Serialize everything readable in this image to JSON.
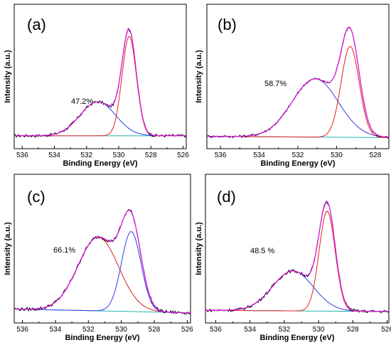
{
  "figure": {
    "panels": [
      "(a)",
      "(b)",
      "(c)",
      "(d)"
    ]
  },
  "chart_data": [
    {
      "type": "line",
      "panel_label": "(a)",
      "xlabel": "Binding Energy (eV)",
      "ylabel": "Intensity (a.u.)",
      "xlim": [
        536.5,
        525.8
      ],
      "x_reversed": true,
      "xticks": [
        536,
        534,
        532,
        530,
        528,
        526
      ],
      "annotation": "47.2%",
      "ylim": [
        0,
        1.0
      ],
      "colors": {
        "data": "#000000",
        "envelope": "#e01ee0",
        "peak1": "#3040e0",
        "peak2": "#e02020",
        "baseline": "#20b0b0"
      },
      "baseline": [
        0.035,
        0.035
      ],
      "peak1": {
        "center": 531.3,
        "height": 0.28,
        "fwhm": 2.6
      },
      "peak2": {
        "center": 529.35,
        "height": 0.82,
        "fwhm": 1.05
      },
      "noise": 0.012
    },
    {
      "type": "line",
      "panel_label": "(b)",
      "xlabel": "Binding Energy (eV)",
      "ylabel": "Intensity (a.u.)",
      "xlim": [
        536.7,
        527.3
      ],
      "x_reversed": true,
      "xticks": [
        536,
        534,
        532,
        530,
        528
      ],
      "annotation": "58.7%",
      "ylim": [
        0,
        1.0
      ],
      "colors": {
        "data": "#000000",
        "envelope": "#e01ee0",
        "peak1": "#3040e0",
        "peak2": "#e02020",
        "baseline": "#20b0b0"
      },
      "baseline": [
        0.03,
        0.02
      ],
      "peak1": {
        "center": 531.1,
        "height": 0.48,
        "fwhm": 2.8
      },
      "peak2": {
        "center": 529.3,
        "height": 0.75,
        "fwhm": 1.1
      },
      "noise": 0.01
    },
    {
      "type": "line",
      "panel_label": "(c)",
      "xlabel": "Binding Energy (eV)",
      "ylabel": "Intensity (a.u.)",
      "xlim": [
        536.5,
        525.8
      ],
      "x_reversed": true,
      "xticks": [
        536,
        534,
        532,
        530,
        528,
        526
      ],
      "annotation": "66.1%",
      "ylim": [
        0,
        1.0
      ],
      "colors": {
        "data": "#000000",
        "envelope": "#e01ee0",
        "peak1": "#e02020",
        "peak2": "#3040e0",
        "baseline": "#20b0b0"
      },
      "baseline": [
        0.04,
        0.01
      ],
      "peak1": {
        "center": 531.4,
        "height": 0.59,
        "fwhm": 2.9
      },
      "peak2": {
        "center": 529.4,
        "height": 0.64,
        "fwhm": 1.4
      },
      "noise": 0.013
    },
    {
      "type": "line",
      "panel_label": "(d)",
      "xlabel": "Binding Energy (eV)",
      "ylabel": "Intensity (a.u.)",
      "xlim": [
        536.6,
        525.9
      ],
      "x_reversed": true,
      "xticks": [
        536,
        534,
        532,
        530,
        528,
        526
      ],
      "annotation": "48.5 %",
      "ylim": [
        0,
        1.0
      ],
      "colors": {
        "data": "#000000",
        "envelope": "#e01ee0",
        "peak1": "#3040e0",
        "peak2": "#e02020",
        "baseline": "#20b0b0"
      },
      "baseline": [
        0.03,
        0.02
      ],
      "peak1": {
        "center": 531.5,
        "height": 0.32,
        "fwhm": 2.8
      },
      "peak2": {
        "center": 529.5,
        "height": 0.8,
        "fwhm": 1.1
      },
      "noise": 0.012
    }
  ]
}
